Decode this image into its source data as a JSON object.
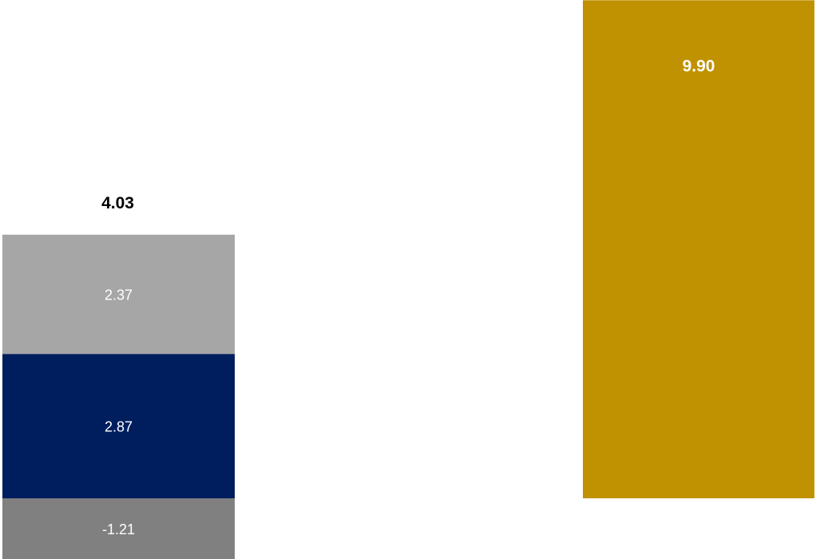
{
  "chart_data": {
    "type": "bar",
    "stacked": true,
    "categories": [
      "",
      ""
    ],
    "stacks": [
      {
        "segments": [
          {
            "value": -1.21,
            "label": "-1.21",
            "color": "#808080"
          },
          {
            "value": 2.87,
            "label": "2.87",
            "color": "#001E5E"
          },
          {
            "value": 2.37,
            "label": "2.37",
            "color": "#A6A6A6"
          }
        ],
        "total": 4.03,
        "total_label": "4.03"
      },
      {
        "segments": [
          {
            "value": 9.9,
            "label": "9.90",
            "color": "#C09100"
          }
        ],
        "total": 9.9,
        "total_label": ""
      }
    ],
    "title": "",
    "xlabel": "",
    "ylabel": "",
    "ylim": [
      -1.21,
      9.9
    ],
    "grid": false,
    "legend": "none"
  }
}
